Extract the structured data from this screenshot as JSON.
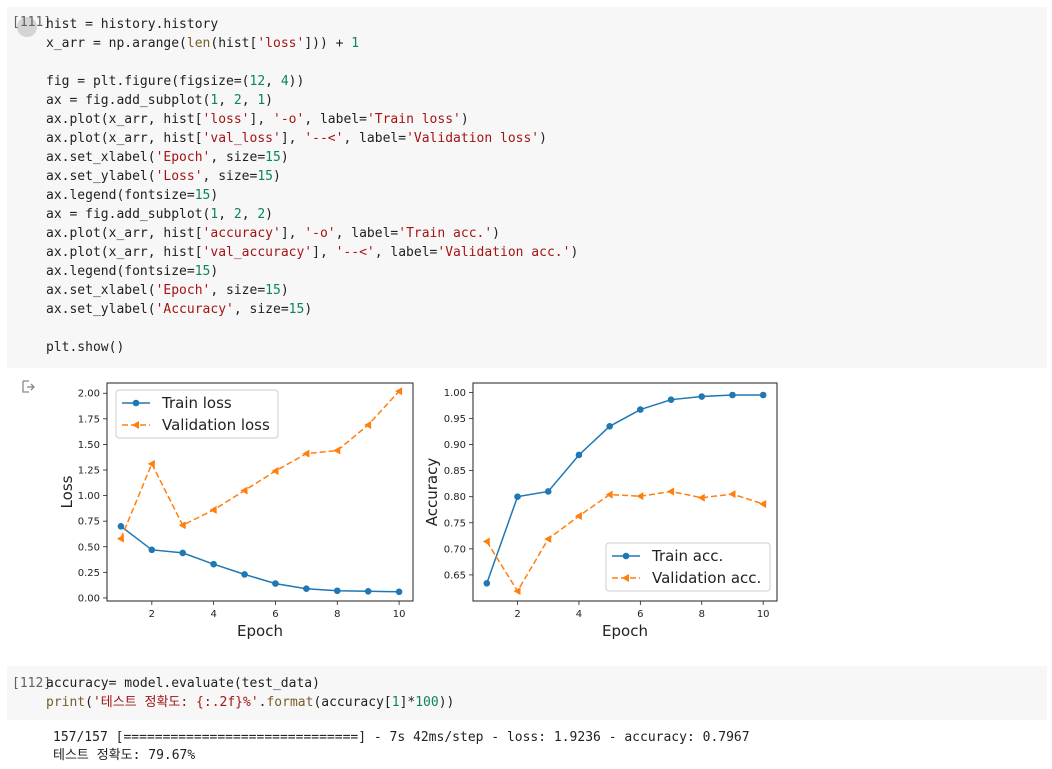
{
  "cell1": {
    "prompt": "[111]",
    "lines": [
      [
        {
          "t": "hist = history.history"
        }
      ],
      [
        {
          "t": "x_arr = np.arange("
        },
        {
          "t": "len",
          "c": "b"
        },
        {
          "t": "(hist["
        },
        {
          "t": "'loss'",
          "c": "s"
        },
        {
          "t": "])) + "
        },
        {
          "t": "1",
          "c": "n"
        }
      ],
      [
        {
          "t": ""
        }
      ],
      [
        {
          "t": "fig = plt.figure(figsize=("
        },
        {
          "t": "12",
          "c": "n"
        },
        {
          "t": ", "
        },
        {
          "t": "4",
          "c": "n"
        },
        {
          "t": "))"
        }
      ],
      [
        {
          "t": "ax = fig.add_subplot("
        },
        {
          "t": "1",
          "c": "n"
        },
        {
          "t": ", "
        },
        {
          "t": "2",
          "c": "n"
        },
        {
          "t": ", "
        },
        {
          "t": "1",
          "c": "n"
        },
        {
          "t": ")"
        }
      ],
      [
        {
          "t": "ax.plot(x_arr, hist["
        },
        {
          "t": "'loss'",
          "c": "s"
        },
        {
          "t": "], "
        },
        {
          "t": "'-o'",
          "c": "s"
        },
        {
          "t": ", label="
        },
        {
          "t": "'Train loss'",
          "c": "s"
        },
        {
          "t": ")"
        }
      ],
      [
        {
          "t": "ax.plot(x_arr, hist["
        },
        {
          "t": "'val_loss'",
          "c": "s"
        },
        {
          "t": "], "
        },
        {
          "t": "'--<'",
          "c": "s"
        },
        {
          "t": ", label="
        },
        {
          "t": "'Validation loss'",
          "c": "s"
        },
        {
          "t": ")"
        }
      ],
      [
        {
          "t": "ax.set_xlabel("
        },
        {
          "t": "'Epoch'",
          "c": "s"
        },
        {
          "t": ", size="
        },
        {
          "t": "15",
          "c": "n"
        },
        {
          "t": ")"
        }
      ],
      [
        {
          "t": "ax.set_ylabel("
        },
        {
          "t": "'Loss'",
          "c": "s"
        },
        {
          "t": ", size="
        },
        {
          "t": "15",
          "c": "n"
        },
        {
          "t": ")"
        }
      ],
      [
        {
          "t": "ax.legend(fontsize="
        },
        {
          "t": "15",
          "c": "n"
        },
        {
          "t": ")"
        }
      ],
      [
        {
          "t": "ax = fig.add_subplot("
        },
        {
          "t": "1",
          "c": "n"
        },
        {
          "t": ", "
        },
        {
          "t": "2",
          "c": "n"
        },
        {
          "t": ", "
        },
        {
          "t": "2",
          "c": "n"
        },
        {
          "t": ")"
        }
      ],
      [
        {
          "t": "ax.plot(x_arr, hist["
        },
        {
          "t": "'accuracy'",
          "c": "s"
        },
        {
          "t": "], "
        },
        {
          "t": "'-o'",
          "c": "s"
        },
        {
          "t": ", label="
        },
        {
          "t": "'Train acc.'",
          "c": "s"
        },
        {
          "t": ")"
        }
      ],
      [
        {
          "t": "ax.plot(x_arr, hist["
        },
        {
          "t": "'val_accuracy'",
          "c": "s"
        },
        {
          "t": "], "
        },
        {
          "t": "'--<'",
          "c": "s"
        },
        {
          "t": ", label="
        },
        {
          "t": "'Validation acc.'",
          "c": "s"
        },
        {
          "t": ")"
        }
      ],
      [
        {
          "t": "ax.legend(fontsize="
        },
        {
          "t": "15",
          "c": "n"
        },
        {
          "t": ")"
        }
      ],
      [
        {
          "t": "ax.set_xlabel("
        },
        {
          "t": "'Epoch'",
          "c": "s"
        },
        {
          "t": ", size="
        },
        {
          "t": "15",
          "c": "n"
        },
        {
          "t": ")"
        }
      ],
      [
        {
          "t": "ax.set_ylabel("
        },
        {
          "t": "'Accuracy'",
          "c": "s"
        },
        {
          "t": ", size="
        },
        {
          "t": "15",
          "c": "n"
        },
        {
          "t": ")"
        }
      ],
      [
        {
          "t": ""
        }
      ],
      [
        {
          "t": "plt.show()"
        }
      ]
    ]
  },
  "output_icon": "output-arrow-icon",
  "chart_data": [
    {
      "type": "line",
      "x": [
        1,
        2,
        3,
        4,
        5,
        6,
        7,
        8,
        9,
        10
      ],
      "xticks": [
        "2",
        "4",
        "6",
        "8",
        "10"
      ],
      "yticks": [
        "0.00",
        "0.25",
        "0.50",
        "0.75",
        "1.00",
        "1.25",
        "1.50",
        "1.75",
        "2.00"
      ],
      "ylim": [
        -0.03,
        2.1
      ],
      "xlim": [
        0.55,
        10.45
      ],
      "xlabel": "Epoch",
      "ylabel": "Loss",
      "legend_position": "top-left",
      "series": [
        {
          "name": "Train loss",
          "style": "solid-circle",
          "color": "#1f77b4",
          "values": [
            0.7,
            0.47,
            0.44,
            0.33,
            0.23,
            0.14,
            0.09,
            0.07,
            0.065,
            0.06
          ]
        },
        {
          "name": "Validation loss",
          "style": "dashed-triangle",
          "color": "#ff7f0e",
          "values": [
            0.58,
            1.31,
            0.71,
            0.86,
            1.05,
            1.24,
            1.41,
            1.44,
            1.69,
            2.02
          ]
        }
      ]
    },
    {
      "type": "line",
      "x": [
        1,
        2,
        3,
        4,
        5,
        6,
        7,
        8,
        9,
        10
      ],
      "xticks": [
        "2",
        "4",
        "6",
        "8",
        "10"
      ],
      "yticks": [
        "0.65",
        "0.70",
        "0.75",
        "0.80",
        "0.85",
        "0.90",
        "0.95",
        "1.00"
      ],
      "ylim": [
        0.6,
        1.018
      ],
      "xlim": [
        0.55,
        10.45
      ],
      "xlabel": "Epoch",
      "ylabel": "Accuracy",
      "legend_position": "lower-right",
      "series": [
        {
          "name": "Train acc.",
          "style": "solid-circle",
          "color": "#1f77b4",
          "values": [
            0.634,
            0.8,
            0.81,
            0.88,
            0.935,
            0.967,
            0.986,
            0.992,
            0.995,
            0.995
          ]
        },
        {
          "name": "Validation acc.",
          "style": "dashed-triangle",
          "color": "#ff7f0e",
          "values": [
            0.714,
            0.619,
            0.719,
            0.763,
            0.804,
            0.801,
            0.81,
            0.798,
            0.805,
            0.786
          ]
        }
      ]
    }
  ],
  "cell2": {
    "prompt": "[112]",
    "lines": [
      [
        {
          "t": "accuracy= model.evaluate(test_data)"
        }
      ],
      [
        {
          "t": "print",
          "c": "b"
        },
        {
          "t": "("
        },
        {
          "t": "'테스트 정확도: {:.2f}%'",
          "c": "s"
        },
        {
          "t": "."
        },
        {
          "t": "format",
          "c": "b"
        },
        {
          "t": "(accuracy["
        },
        {
          "t": "1",
          "c": "n"
        },
        {
          "t": "]*"
        },
        {
          "t": "100",
          "c": "n"
        },
        {
          "t": "))"
        }
      ]
    ]
  },
  "output2": {
    "lines": [
      "157/157 [==============================] - 7s 42ms/step - loss: 1.9236 - accuracy: 0.7967",
      "테스트 정확도: 79.67%"
    ]
  }
}
